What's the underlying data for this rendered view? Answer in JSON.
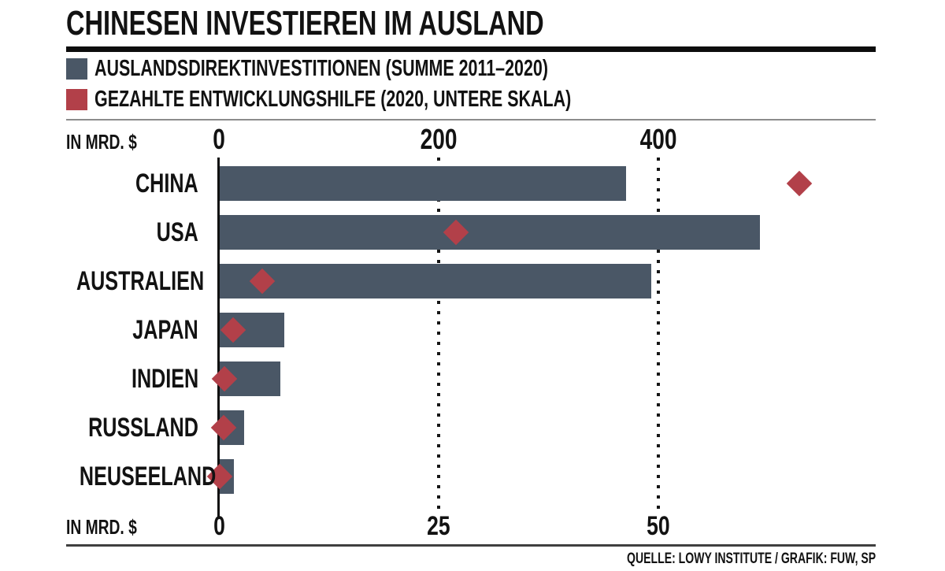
{
  "page": {
    "title": "CHINESEN INVESTIEREN IM AUSLAND",
    "source": "QUELLE: LOWY INSTITUTE / GRAFIK: FUW, SP"
  },
  "legend": [
    {
      "label": "AUSLANDSDIREKTINVESTITIONEN (SUMME 2011–2020)",
      "color": "#4a5766"
    },
    {
      "label": "GEZAHLTE ENTWICKLUNGSHILFE (2020, UNTERE SKALA)",
      "color": "#b24049"
    }
  ],
  "colors": {
    "bar": "#4a5766",
    "diamond": "#b24049",
    "axis": "#111111",
    "text": "#121212"
  },
  "chart_data": {
    "type": "bar",
    "orientation": "horizontal",
    "title": "CHINESEN INVESTIEREN IM AUSLAND",
    "categories": [
      "CHINA",
      "USA",
      "AUSTRALIEN",
      "JAPAN",
      "INDIEN",
      "RUSSLAND",
      "NEUSEELAND"
    ],
    "series": [
      {
        "name": "AUSLANDSDIREKTINVESTITIONEN (SUMME 2011–2020)",
        "mark": "bar",
        "axis": "top",
        "unit": "MRD. $",
        "color": "#4a5766",
        "values": [
          370,
          492,
          393,
          59,
          55,
          22,
          13
        ]
      },
      {
        "name": "GEZAHLTE ENTWICKLUNGSHILFE (2020, UNTERE SKALA)",
        "mark": "diamond",
        "axis": "bottom",
        "unit": "MRD. $",
        "color": "#b24049",
        "values": [
          66,
          27,
          4.9,
          1.6,
          0.6,
          0.5,
          0.1
        ]
      }
    ],
    "top_axis": {
      "label": "IN MRD. $",
      "ticks": [
        0,
        200,
        400
      ],
      "range": [
        0,
        600
      ]
    },
    "bottom_axis": {
      "label": "IN MRD. $",
      "ticks": [
        0,
        25,
        50
      ],
      "range": [
        0,
        75
      ]
    },
    "grid": "dotted vertical lines at non-zero ticks",
    "legend_position": "top-left"
  }
}
